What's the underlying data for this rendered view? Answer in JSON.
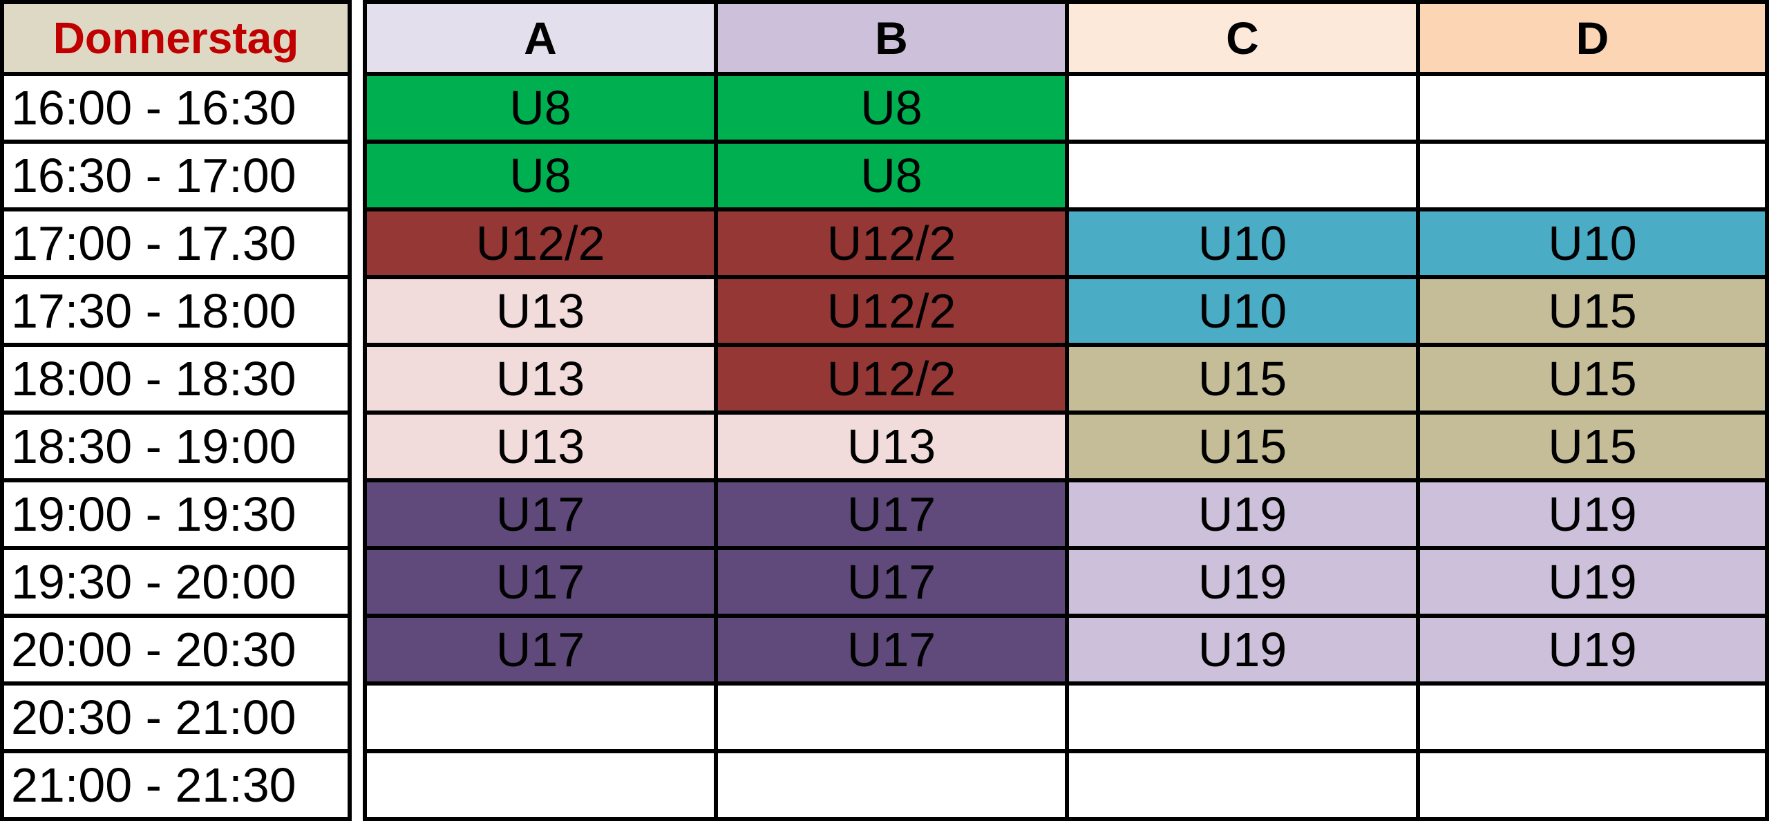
{
  "day": {
    "label": "Donnerstag",
    "color": "#c00000",
    "bg": "#ddd9c4"
  },
  "columns": [
    {
      "id": "A",
      "label": "A",
      "bg": "#e4dfec"
    },
    {
      "id": "B",
      "label": "B",
      "bg": "#ccc0da"
    },
    {
      "id": "C",
      "label": "C",
      "bg": "#fde9d9"
    },
    {
      "id": "D",
      "label": "D",
      "bg": "#fcd5b4"
    }
  ],
  "legend": {
    "U8": "#00b050",
    "U12/2": "#953735",
    "U10": "#4bacc6",
    "U13": "#f2dcdb",
    "U15": "#c4bd97",
    "U17": "#604a7b",
    "U19": "#ccc0da"
  },
  "rows": [
    {
      "time": "16:00 - 16:30",
      "cells": [
        "U8",
        "U8",
        "",
        ""
      ]
    },
    {
      "time": "16:30 - 17:00",
      "cells": [
        "U8",
        "U8",
        "",
        ""
      ]
    },
    {
      "time": "17:00 - 17.30",
      "cells": [
        "U12/2",
        "U12/2",
        "U10",
        "U10"
      ]
    },
    {
      "time": "17:30 - 18:00",
      "cells": [
        "U13",
        "U12/2",
        "U10",
        "U15"
      ]
    },
    {
      "time": "18:00 - 18:30",
      "cells": [
        "U13",
        "U12/2",
        "U15",
        "U15"
      ]
    },
    {
      "time": "18:30 - 19:00",
      "cells": [
        "U13",
        "U13",
        "U15",
        "U15"
      ]
    },
    {
      "time": "19:00 - 19:30",
      "cells": [
        "U17",
        "U17",
        "U19",
        "U19"
      ]
    },
    {
      "time": "19:30 - 20:00",
      "cells": [
        "U17",
        "U17",
        "U19",
        "U19"
      ]
    },
    {
      "time": "20:00 - 20:30",
      "cells": [
        "U17",
        "U17",
        "U19",
        "U19"
      ]
    },
    {
      "time": "20:30 - 21:00",
      "cells": [
        "",
        "",
        "",
        ""
      ]
    },
    {
      "time": "21:00 - 21:30",
      "cells": [
        "",
        "",
        "",
        ""
      ]
    }
  ]
}
